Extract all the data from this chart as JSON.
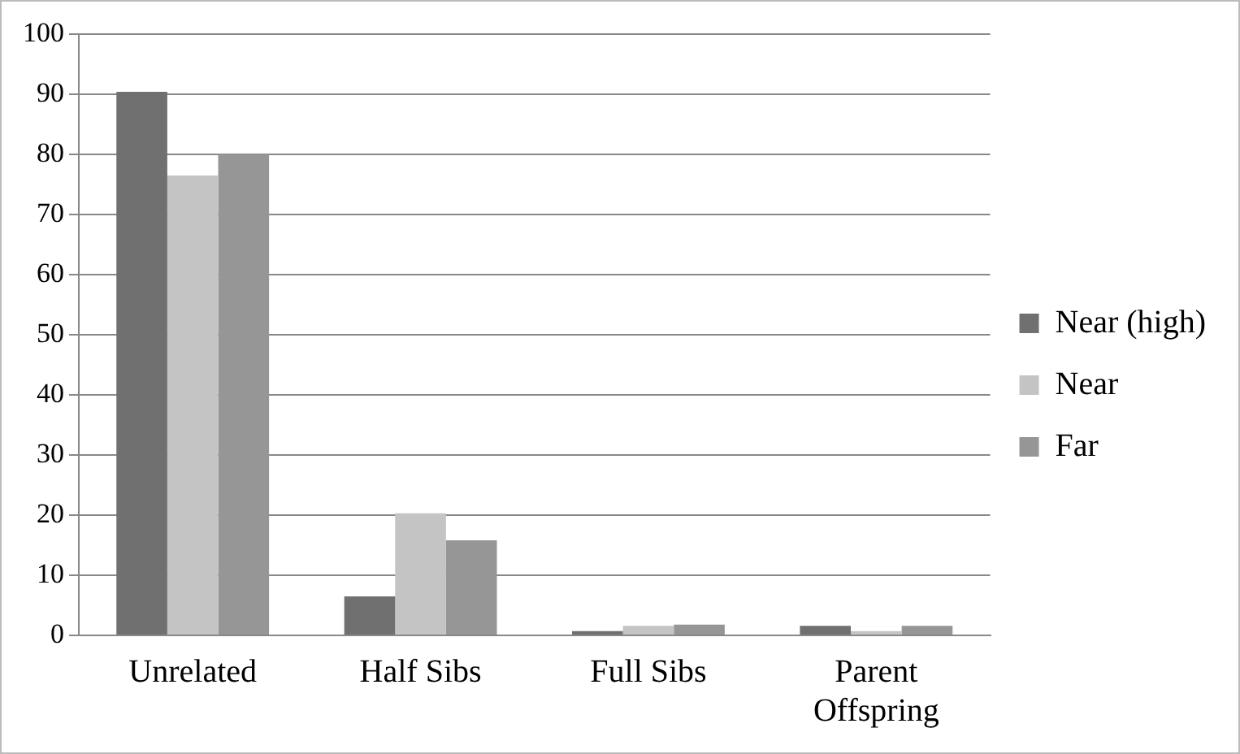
{
  "chart_data": {
    "type": "bar",
    "categories": [
      "Unrelated",
      "Half Sibs",
      "Full Sibs",
      "Parent Offspring"
    ],
    "series": [
      {
        "name": "Near (high)",
        "color": "#707070",
        "values": [
          90.4,
          6.5,
          0.7,
          1.6
        ]
      },
      {
        "name": "Near",
        "color": "#c4c4c4",
        "values": [
          76.5,
          20.3,
          1.6,
          0.7
        ]
      },
      {
        "name": "Far",
        "color": "#969696",
        "values": [
          80,
          15.8,
          1.8,
          1.6
        ]
      }
    ],
    "ylim": [
      0,
      100
    ],
    "yticks": [
      0,
      10,
      20,
      30,
      40,
      50,
      60,
      70,
      80,
      90,
      100
    ],
    "grid": "y",
    "legend": "right"
  }
}
